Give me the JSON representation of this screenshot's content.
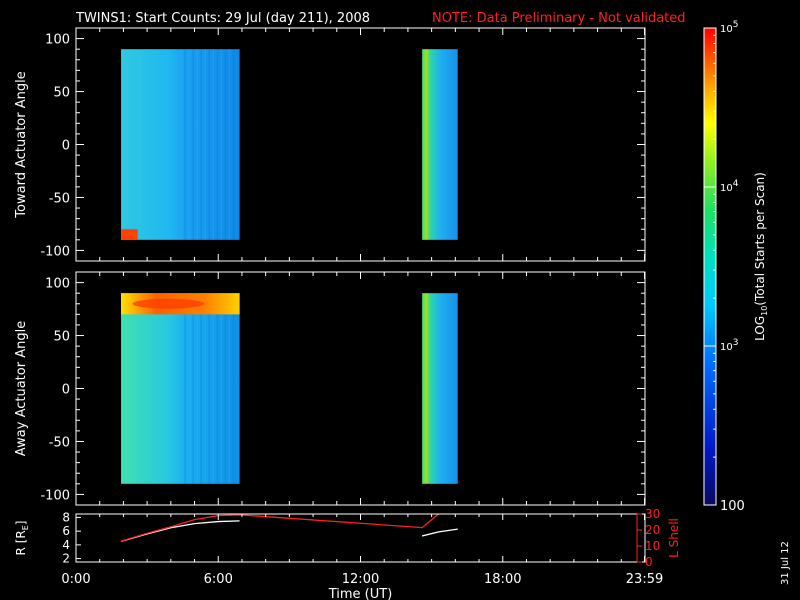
{
  "title": "TWINS1: Start Counts: 29 Jul (day 211), 2008",
  "note": "NOTE: Data Preliminary - Not validated",
  "date_stamp": "31 Jul 12",
  "colors": {
    "background": "#000000",
    "note": "#ff2020",
    "r_line": "#ffffff",
    "l_shell_line": "#ff2020"
  },
  "chart_data": [
    {
      "type": "heatmap",
      "ylabel": "Toward Actuator Angle",
      "ylim": [
        -110,
        110
      ],
      "yticks": [
        -100,
        -50,
        0,
        50,
        100
      ],
      "x_range_hours": [
        0,
        24
      ],
      "blocks": [
        {
          "x_start": 1.9,
          "x_end": 6.9,
          "y_min": -90,
          "y_max": 90,
          "log_counts": 2.85
        },
        {
          "x_start": 14.6,
          "x_end": 16.1,
          "y_min": -90,
          "y_max": 90,
          "log_counts": 2.9
        }
      ],
      "hotspots": [
        {
          "x_start": 1.9,
          "x_end": 2.6,
          "y_min": -90,
          "y_max": -80,
          "log_counts": 4.8
        }
      ]
    },
    {
      "type": "heatmap",
      "ylabel": "Away Actuator Angle",
      "ylim": [
        -110,
        110
      ],
      "yticks": [
        -100,
        -50,
        0,
        50,
        100
      ],
      "x_range_hours": [
        0,
        24
      ],
      "blocks": [
        {
          "x_start": 1.9,
          "x_end": 6.9,
          "y_min": -90,
          "y_max": 90,
          "log_counts": 3.1
        },
        {
          "x_start": 14.6,
          "x_end": 16.1,
          "y_min": -90,
          "y_max": 90,
          "log_counts": 3.0
        }
      ],
      "hotspots": [
        {
          "x_start": 1.9,
          "x_end": 6.9,
          "y_min": 70,
          "y_max": 90,
          "log_counts": 4.3
        }
      ]
    },
    {
      "type": "line",
      "xlabel": "Time (UT)",
      "xticks": [
        "0:00",
        "6:00",
        "12:00",
        "18:00",
        "23:59"
      ],
      "xtick_values": [
        0,
        6,
        12,
        18,
        23.98
      ],
      "left_axis": {
        "label": "R [R",
        "label_sub": "E",
        "label_tail": "]",
        "ylim": [
          1.5,
          8.5
        ],
        "yticks": [
          2,
          4,
          6,
          8
        ]
      },
      "right_axis": {
        "label": "L Shell",
        "ylim": [
          0,
          30
        ],
        "yticks": [
          0,
          10,
          20,
          30
        ]
      },
      "series": [
        {
          "axis": "left",
          "color": "#ffffff",
          "x": [
            1.9,
            3,
            4,
            5,
            6,
            6.9
          ],
          "y": [
            4.5,
            5.6,
            6.5,
            7.1,
            7.4,
            7.5
          ]
        },
        {
          "axis": "left",
          "color": "#ffffff",
          "x": [
            14.6,
            15.3,
            16.1
          ],
          "y": [
            5.3,
            5.9,
            6.3
          ]
        },
        {
          "axis": "right",
          "color": "#ff2020",
          "x": [
            1.9,
            3,
            4,
            5,
            6,
            6.9,
            14.6,
            16.1
          ],
          "y": [
            13,
            18,
            22,
            26.5,
            29,
            29.5,
            21.5,
            40
          ]
        }
      ]
    }
  ],
  "colorbar": {
    "label_prefix": "LOG",
    "label_sub": "10",
    "label_suffix": "(Total Starts per Scan)",
    "range_log": [
      2,
      5
    ],
    "ticks": [
      {
        "base": "10",
        "exp": "5",
        "value_log": 5
      },
      {
        "base": "10",
        "exp": "4",
        "value_log": 4
      },
      {
        "base": "10",
        "exp": "3",
        "value_log": 3
      },
      {
        "base": "100",
        "exp": "",
        "value_log": 2
      }
    ]
  }
}
